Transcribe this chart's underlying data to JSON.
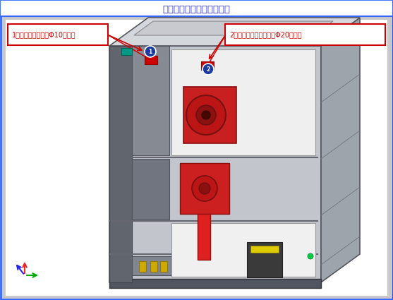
{
  "title": "手车室安装弧光保护开孔图",
  "title_color": "#3333CC",
  "title_fontsize": 9.5,
  "bg_color": "#FFFFFF",
  "outer_border_color": "#3366FF",
  "content_bg": "#C8C8C8",
  "annotation1_text": "1：光纤穿孔走线，Φ10开孔。",
  "annotation1_color": "#CC0000",
  "annotation1_bg": "#FFFFFF",
  "annotation1_border": "#CC0000",
  "annotation2_text": "2：弧光探头安装位置，Φ20开孔。",
  "annotation2_color": "#CC0000",
  "annotation2_bg": "#FFFFFF",
  "annotation2_border": "#CC0000",
  "cab_front_color": "#C0C4CB",
  "cab_top_color": "#D8DADF",
  "cab_right_color": "#9EA3AA",
  "cab_left_dark": "#5A5F68",
  "cab_inner_light": "#E8EAED",
  "cab_panel_white": "#F2F2F2",
  "red_component": "#CC2020",
  "red_dark": "#881010",
  "yellow_color": "#DDBB00",
  "teal_color": "#009988",
  "dot_blue": "#1A3A9F",
  "axis_green": "#00AA00",
  "axis_red": "#EE2222",
  "axis_blue": "#2222EE"
}
